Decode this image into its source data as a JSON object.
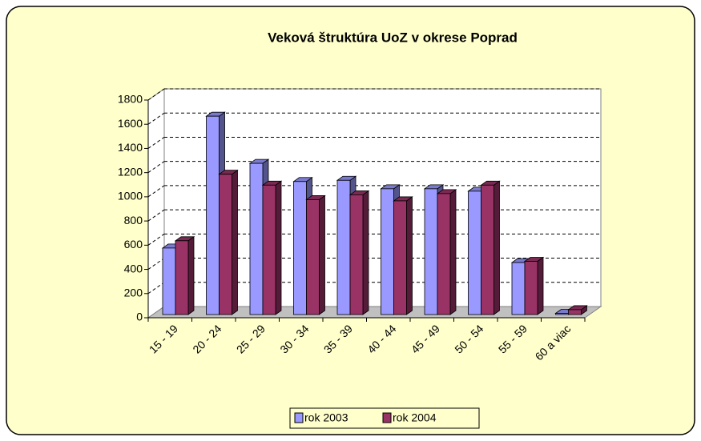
{
  "chart_data": {
    "type": "bar3d",
    "title": "Veková štruktúra UoZ  v okrese Poprad",
    "categories": [
      "15 - 19",
      "20 - 24",
      "25 - 29",
      "30 - 34",
      "35 - 39",
      "40 - 44",
      "45 - 49",
      "50 - 54",
      "55 - 59",
      "60 a viac"
    ],
    "series": [
      {
        "name": "rok 2003",
        "color": "#9999ff",
        "values": [
          550,
          1640,
          1250,
          1100,
          1110,
          1040,
          1040,
          1020,
          430,
          10
        ]
      },
      {
        "name": "rok 2004",
        "color": "#993366",
        "values": [
          610,
          1160,
          1070,
          950,
          990,
          940,
          1000,
          1070,
          440,
          40
        ]
      }
    ],
    "ylim": [
      0,
      1800
    ],
    "yticks": [
      0,
      200,
      400,
      600,
      800,
      1000,
      1200,
      1400,
      1600,
      1800
    ],
    "grid": true,
    "legend": "bottom"
  }
}
